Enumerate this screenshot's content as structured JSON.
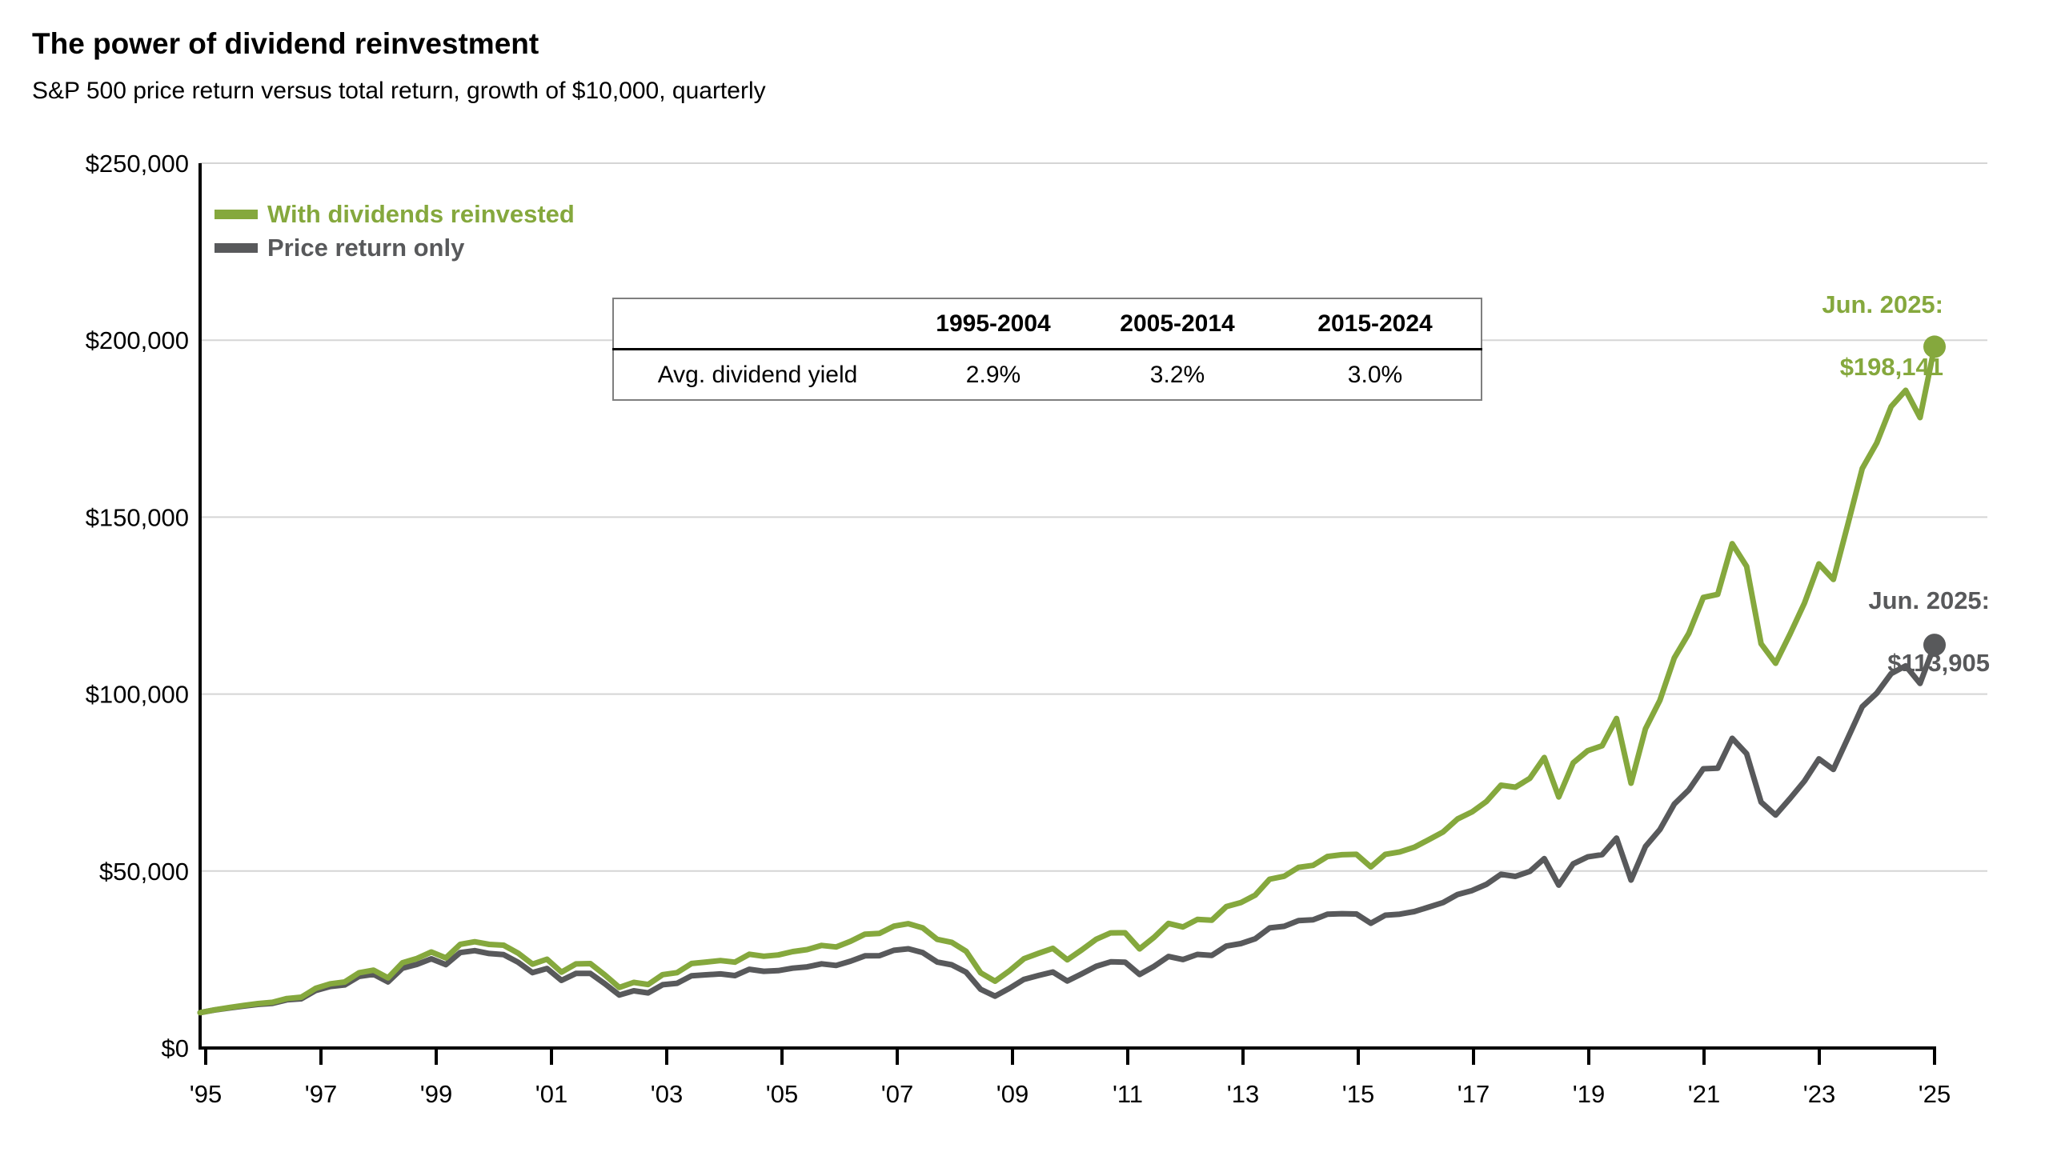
{
  "header": {
    "title": "The power of dividend reinvestment",
    "subtitle": "S&P 500 price return versus total return, growth of $10,000, quarterly"
  },
  "legend": {
    "items": [
      {
        "label": "With dividends reinvested",
        "color": "#85a83d"
      },
      {
        "label": "Price return only",
        "color": "#58595b"
      }
    ]
  },
  "yield_table": {
    "col_headers": [
      "",
      "1995-2004",
      "2005-2014",
      "2015-2024"
    ],
    "row_label": "Avg. dividend yield",
    "values": [
      "2.9%",
      "3.2%",
      "3.0%"
    ]
  },
  "annotations": [
    {
      "series": "With dividends reinvested",
      "line1": "Jun. 2025:",
      "line2": "$198,141",
      "color": "#85a83d"
    },
    {
      "series": "Price return only",
      "line1": "Jun. 2025:",
      "line2": "$113,905",
      "color": "#58595b"
    }
  ],
  "colors": {
    "total_return_green": "#85a83d",
    "price_return_gray": "#58595b",
    "gridline": "#d5d5d5",
    "axis": "#000000"
  },
  "chart_data": {
    "type": "line",
    "title": "The power of dividend reinvestment",
    "subtitle": "S&P 500 price return versus total return, growth of $10,000, quarterly",
    "ylim": [
      0,
      250000
    ],
    "y_ticks": [
      0,
      50000,
      100000,
      150000,
      200000,
      250000
    ],
    "y_tick_labels": [
      "$0",
      "$50,000",
      "$100,000",
      "$150,000",
      "$200,000",
      "$250,000"
    ],
    "x_tick_labels": [
      "'95",
      "'97",
      "'99",
      "'01",
      "'03",
      "'05",
      "'07",
      "'09",
      "'11",
      "'13",
      "'15",
      "'17",
      "'19",
      "'21",
      "'23",
      "'25"
    ],
    "grid": "horizontal-only",
    "legend_position": "top-left-inside",
    "quarters": [
      "1995-Q2",
      "1995-Q3",
      "1995-Q4",
      "1996-Q1",
      "1996-Q2",
      "1996-Q3",
      "1996-Q4",
      "1997-Q1",
      "1997-Q2",
      "1997-Q3",
      "1997-Q4",
      "1998-Q1",
      "1998-Q2",
      "1998-Q3",
      "1998-Q4",
      "1999-Q1",
      "1999-Q2",
      "1999-Q3",
      "1999-Q4",
      "2000-Q1",
      "2000-Q2",
      "2000-Q3",
      "2000-Q4",
      "2001-Q1",
      "2001-Q2",
      "2001-Q3",
      "2001-Q4",
      "2002-Q1",
      "2002-Q2",
      "2002-Q3",
      "2002-Q4",
      "2003-Q1",
      "2003-Q2",
      "2003-Q3",
      "2003-Q4",
      "2004-Q1",
      "2004-Q2",
      "2004-Q3",
      "2004-Q4",
      "2005-Q1",
      "2005-Q2",
      "2005-Q3",
      "2005-Q4",
      "2006-Q1",
      "2006-Q2",
      "2006-Q3",
      "2006-Q4",
      "2007-Q1",
      "2007-Q2",
      "2007-Q3",
      "2007-Q4",
      "2008-Q1",
      "2008-Q2",
      "2008-Q3",
      "2008-Q4",
      "2009-Q1",
      "2009-Q2",
      "2009-Q3",
      "2009-Q4",
      "2010-Q1",
      "2010-Q2",
      "2010-Q3",
      "2010-Q4",
      "2011-Q1",
      "2011-Q2",
      "2011-Q3",
      "2011-Q4",
      "2012-Q1",
      "2012-Q2",
      "2012-Q3",
      "2012-Q4",
      "2013-Q1",
      "2013-Q2",
      "2013-Q3",
      "2013-Q4",
      "2014-Q1",
      "2014-Q2",
      "2014-Q3",
      "2014-Q4",
      "2015-Q1",
      "2015-Q2",
      "2015-Q3",
      "2015-Q4",
      "2016-Q1",
      "2016-Q2",
      "2016-Q3",
      "2016-Q4",
      "2017-Q1",
      "2017-Q2",
      "2017-Q3",
      "2017-Q4",
      "2018-Q1",
      "2018-Q2",
      "2018-Q3",
      "2018-Q4",
      "2019-Q1",
      "2019-Q2",
      "2019-Q3",
      "2019-Q4",
      "2020-Q1",
      "2020-Q2",
      "2020-Q3",
      "2020-Q4",
      "2021-Q1",
      "2021-Q2",
      "2021-Q3",
      "2021-Q4",
      "2022-Q1",
      "2022-Q2",
      "2022-Q3",
      "2022-Q4",
      "2023-Q1",
      "2023-Q2",
      "2023-Q3",
      "2023-Q4",
      "2024-Q1",
      "2024-Q2",
      "2024-Q3",
      "2024-Q4",
      "2025-Q1",
      "2025-Q2"
    ],
    "series": [
      {
        "name": "With dividends reinvested",
        "color": "#85a83d",
        "end_label": "Jun. 2025: $198,141",
        "values": [
          10000,
          10778,
          11411,
          12015,
          12540,
          12911,
          13979,
          14354,
          16859,
          18125,
          18653,
          21276,
          21996,
          19821,
          24067,
          25302,
          27125,
          25463,
          29301,
          30024,
          29277,
          29046,
          26819,
          23678,
          25101,
          21439,
          23754,
          23850,
          20669,
          17103,
          18542,
          17958,
          20727,
          21282,
          23868,
          24287,
          24715,
          24258,
          26499,
          25932,
          26289,
          27241,
          27801,
          28971,
          28550,
          30164,
          32173,
          32380,
          34419,
          35116,
          33929,
          30704,
          29849,
          27325,
          21259,
          18866,
          21837,
          25226,
          26732,
          28164,
          24938,
          27738,
          30709,
          32523,
          32546,
          28012,
          31278,
          35194,
          34192,
          36331,
          36131,
          39937,
          41070,
          43194,
          47697,
          48538,
          51049,
          51602,
          54115,
          54602,
          54726,
          51167,
          54721,
          55398,
          56710,
          58855,
          61051,
          64726,
          66696,
          69656,
          74262,
          73691,
          76202,
          82065,
          70924,
          80559,
          84003,
          85389,
          93104,
          74825,
          90168,
          98251,
          110250,
          117162,
          127314,
          128198,
          142500,
          136077,
          114222,
          108693,
          116927,
          125720,
          136783,
          132402,
          147957,
          163738,
          170947,
          181234,
          185836,
          178130,
          198141
        ]
      },
      {
        "name": "Price return only",
        "color": "#58595b",
        "end_label": "Jun. 2025: $113,905",
        "values": [
          10000,
          10728,
          11306,
          11850,
          12311,
          12617,
          13598,
          13899,
          16249,
          17389,
          17814,
          20225,
          20814,
          18670,
          22565,
          23614,
          25199,
          23547,
          26971,
          27510,
          26702,
          26370,
          24236,
          21300,
          22476,
          19109,
          21075,
          21063,
          18170,
          14966,
          16151,
          15570,
          17889,
          18283,
          20411,
          20674,
          20942,
          20460,
          22247,
          21672,
          21869,
          22557,
          22915,
          23770,
          23317,
          24522,
          26035,
          26082,
          27597,
          28027,
          26955,
          24281,
          23497,
          21411,
          16581,
          14647,
          16876,
          19405,
          20470,
          21467,
          18921,
          20949,
          23087,
          24338,
          24243,
          20770,
          23086,
          25856,
          25005,
          26447,
          26181,
          28806,
          29487,
          30869,
          33931,
          34371,
          35984,
          36206,
          37795,
          37960,
          37872,
          35246,
          37521,
          37811,
          38529,
          39803,
          41098,
          43372,
          44487,
          46248,
          49080,
          48479,
          49901,
          53493,
          46019,
          52031,
          54002,
          54644,
          59308,
          47446,
          56912,
          61735,
          68950,
          72930,
          78890,
          79074,
          87493,
          83165,
          69488,
          65821,
          70482,
          75434,
          81695,
          78716,
          87560,
          96454,
          100238,
          105782,
          107969,
          103017,
          113905
        ]
      }
    ]
  }
}
